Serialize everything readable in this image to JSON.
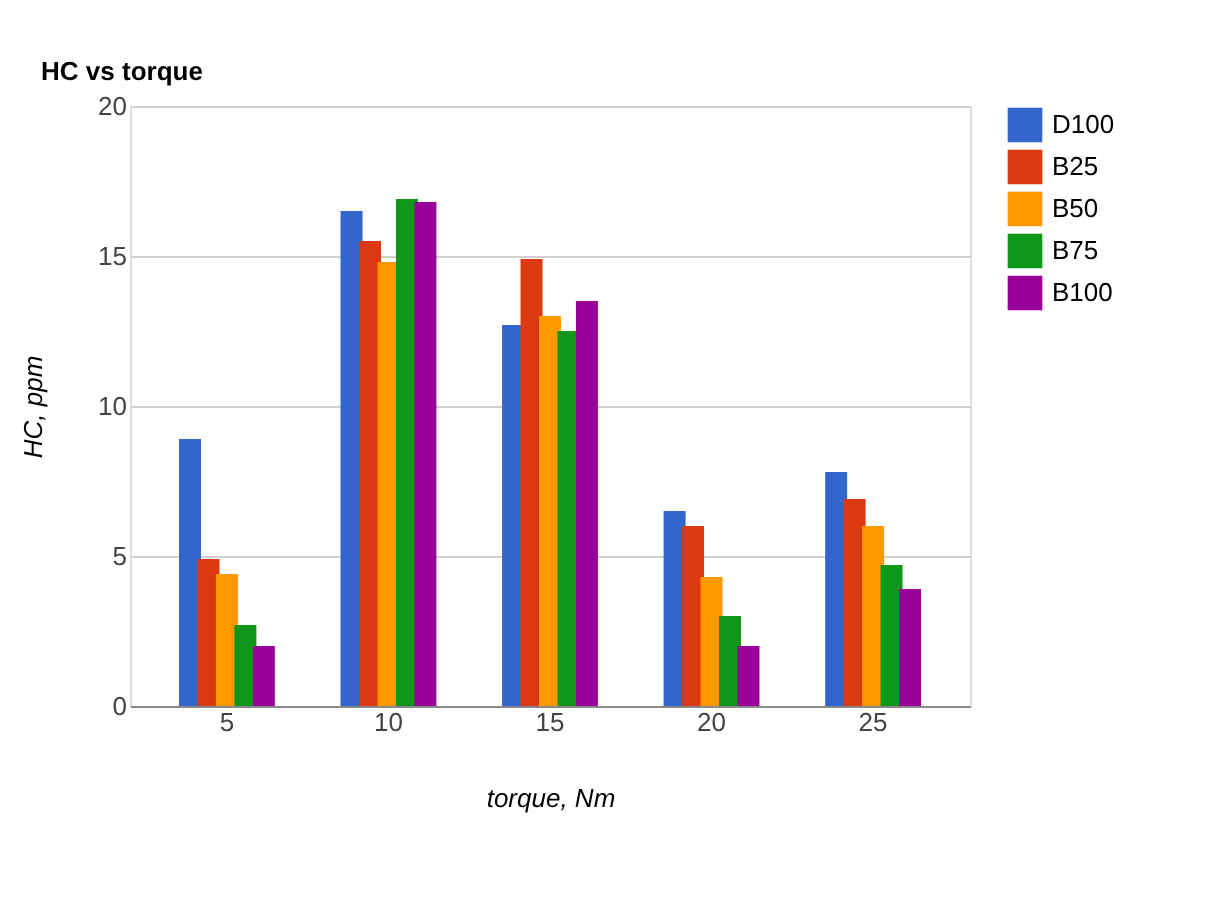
{
  "chart_data": {
    "type": "bar",
    "title": "HC vs torque",
    "xlabel": "torque, Nm",
    "ylabel": "HC, ppm",
    "categories": [
      "5",
      "10",
      "15",
      "20",
      "25"
    ],
    "series": [
      {
        "name": "D100",
        "color": "#3366cc",
        "values": [
          8.9,
          16.5,
          12.7,
          6.5,
          7.8
        ]
      },
      {
        "name": "B25",
        "color": "#dc3912",
        "values": [
          4.9,
          15.5,
          14.9,
          6.0,
          6.9
        ]
      },
      {
        "name": "B50",
        "color": "#ff9900",
        "values": [
          4.4,
          14.8,
          13.0,
          4.3,
          6.0
        ]
      },
      {
        "name": "B75",
        "color": "#109618",
        "values": [
          2.7,
          16.9,
          12.5,
          3.0,
          4.7
        ]
      },
      {
        "name": "B100",
        "color": "#990099",
        "values": [
          2.0,
          16.8,
          13.5,
          2.0,
          3.9
        ]
      }
    ],
    "ylim": [
      0,
      20
    ],
    "yticks": [
      0,
      5,
      10,
      15,
      20
    ],
    "grid": "y",
    "legend": "right"
  }
}
